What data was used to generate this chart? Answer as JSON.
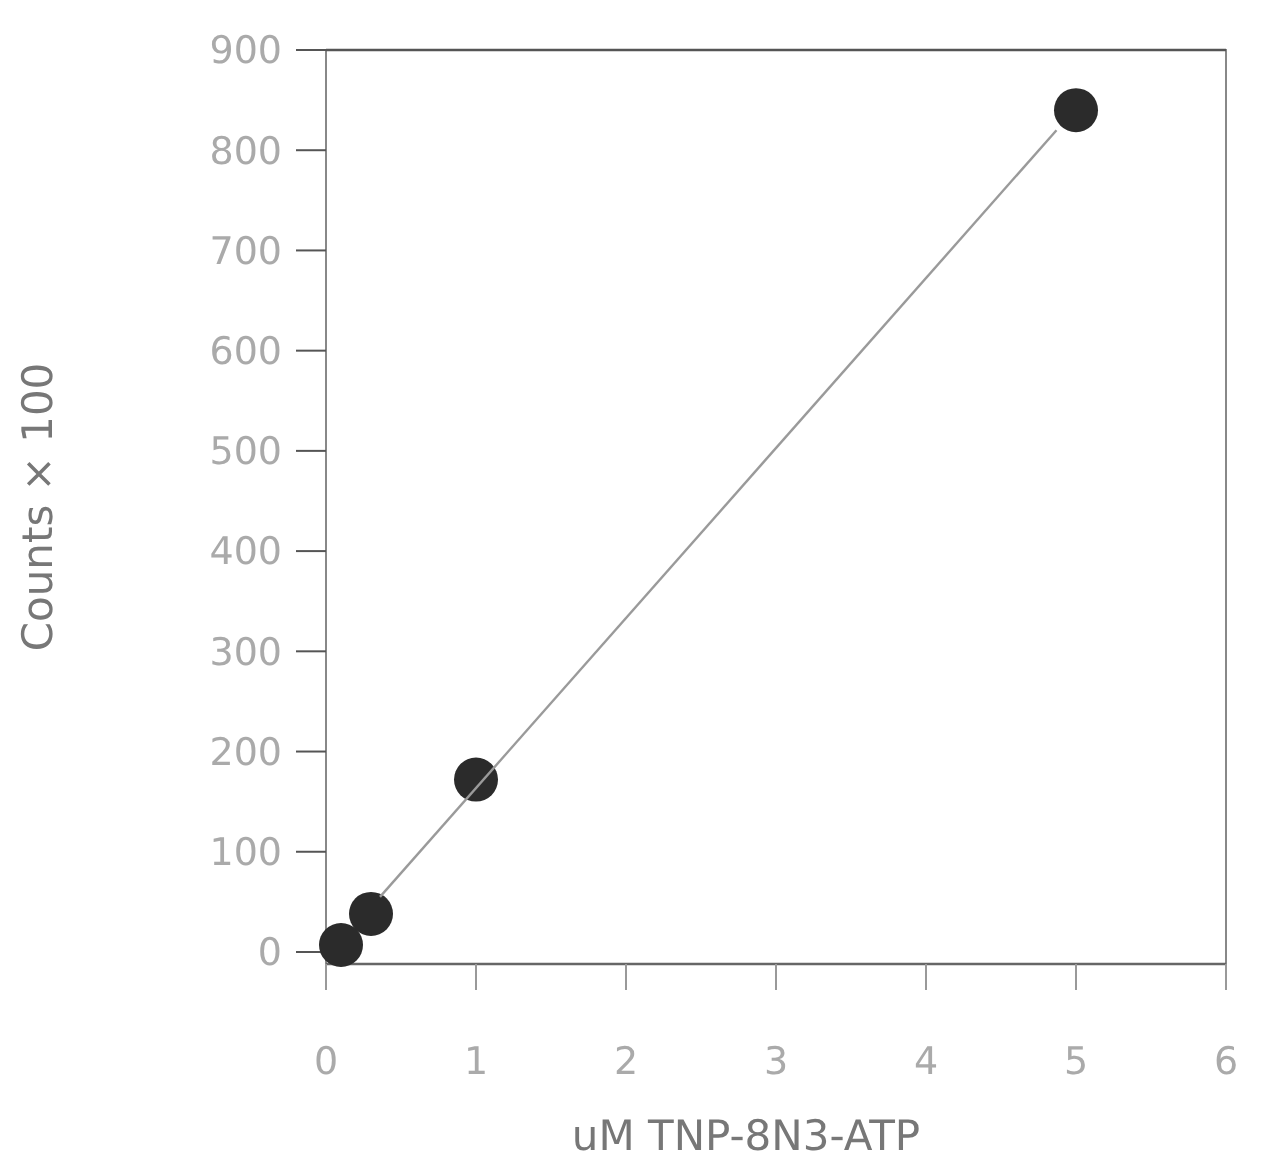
{
  "chart_data": {
    "type": "scatter",
    "xlabel": "uM TNP-8N3-ATP",
    "ylabel": "Counts × 100",
    "xlim": [
      0,
      6
    ],
    "ylim": [
      -12,
      900
    ],
    "xticks": [
      0,
      1,
      2,
      3,
      4,
      5,
      6
    ],
    "yticks": [
      0,
      100,
      200,
      300,
      400,
      500,
      600,
      700,
      800,
      900
    ],
    "grid": false,
    "marker": "circle",
    "series": [
      {
        "type": "scatter",
        "color": "#2b2b2b",
        "x": [
          0.1,
          0.3,
          1,
          5
        ],
        "values": [
          7,
          38,
          172,
          840
        ]
      },
      {
        "type": "line",
        "color": "#9a9a9a",
        "x": [
          0.36,
          4.87
        ],
        "values": [
          55,
          820
        ],
        "marker": "none",
        "line_style": "solid"
      }
    ]
  }
}
